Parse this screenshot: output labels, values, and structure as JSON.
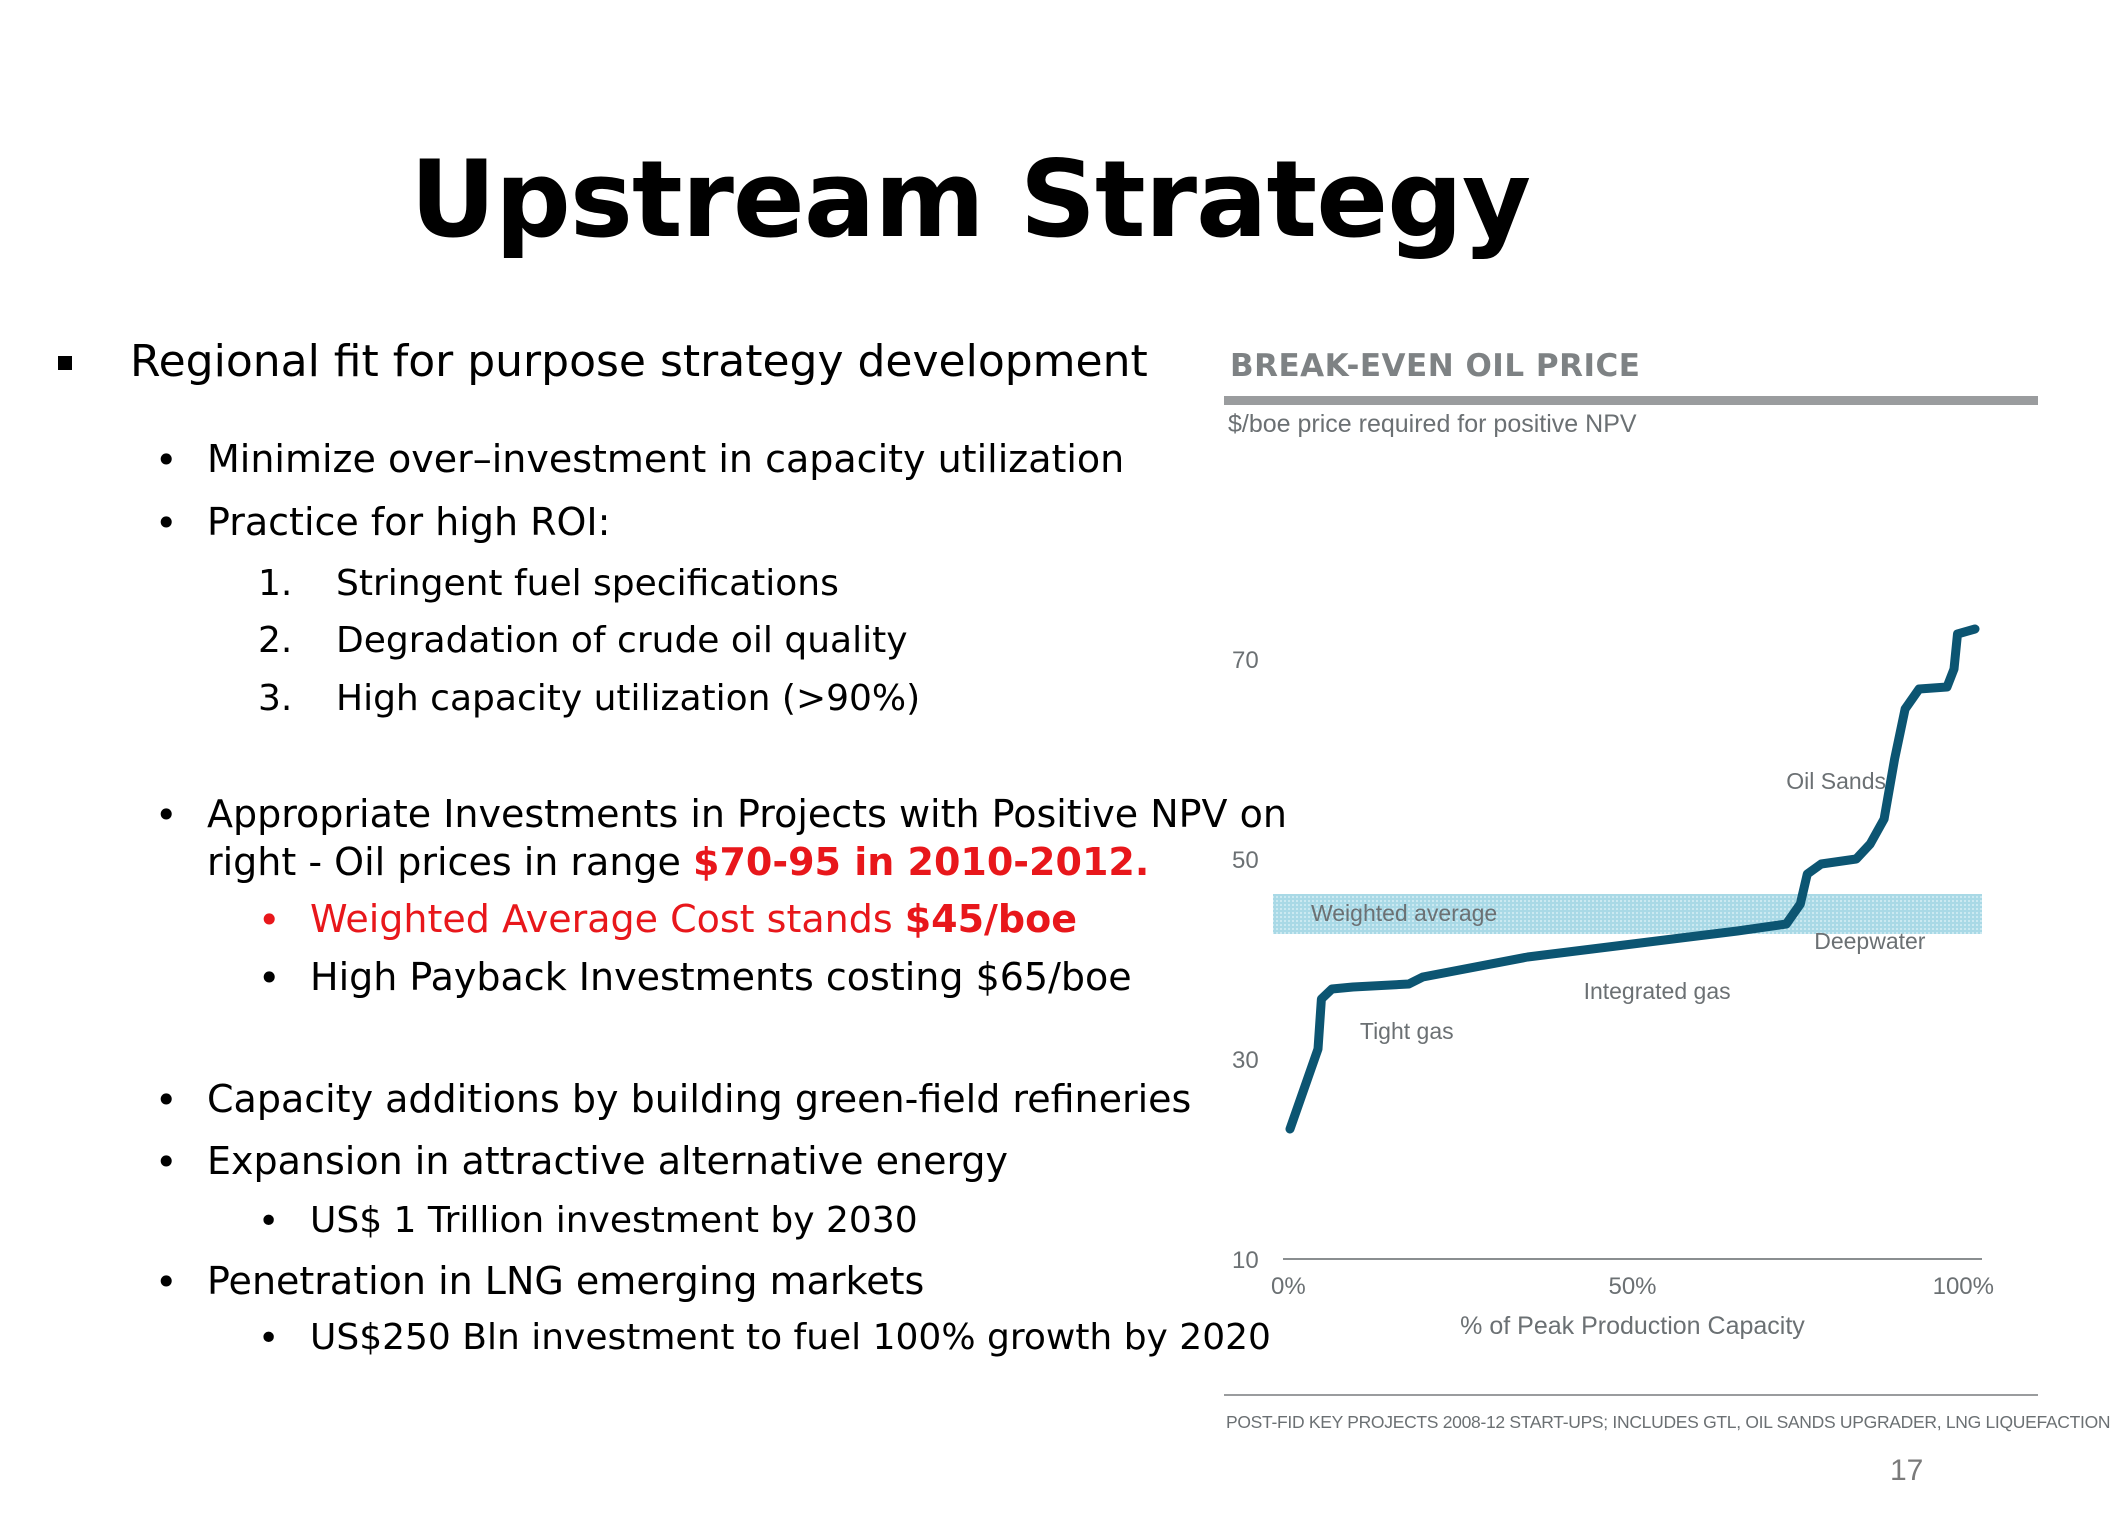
{
  "slide": {
    "title": "Upstream Strategy",
    "page_number": "17",
    "bullets": {
      "b1": "Regional fit for purpose strategy development",
      "b1a": "Minimize over–investment in capacity utilization",
      "b1b": "Practice for high ROI:",
      "n1_num": "1.",
      "n1": "Stringent fuel specifications",
      "n2_num": "2.",
      "n2": "Degradation of crude oil quality",
      "n3_num": "3.",
      "n3": "High capacity utilization (>90%)",
      "b2_line1": "Appropriate Investments in Projects with Positive NPV on",
      "b2_line2_pre": "right - Oil prices in range ",
      "b2_line2_red": "$70-95 in 2010-2012.",
      "b2a_pre": "Weighted Average Cost stands ",
      "b2a_bold": "$45/boe",
      "b2b": "High Payback Investments costing $65/boe",
      "b3": "Capacity additions by building green-field refineries",
      "b4": "Expansion in attractive alternative energy",
      "b4a": "US$ 1 Trillion investment by 2030",
      "b5": "Penetration in LNG emerging markets",
      "b5a": "US$250 Bln investment to fuel 100% growth by 2020"
    },
    "colors": {
      "text": "#000000",
      "highlight_red": "#e8171b"
    }
  },
  "chart_data": {
    "type": "line",
    "title": "BREAK-EVEN OIL PRICE",
    "subtitle": "$/boe price required for positive NPV",
    "xlabel": "% of Peak Production Capacity",
    "ylabel": "",
    "x_ticks": [
      "0%",
      "50%",
      "100%"
    ],
    "y_ticks": [
      "10",
      "30",
      "50",
      "70"
    ],
    "xlim": [
      0,
      100
    ],
    "ylim": [
      10,
      80
    ],
    "grid": false,
    "footnote": "POST-FID KEY PROJECTS 2008-12 START-UPS; INCLUDES GTL, OIL SANDS UPGRADER, LNG LIQUEFACTION",
    "weighted_average_band": {
      "label": "Weighted average",
      "low": 42.5,
      "high": 46.5
    },
    "annotations": [
      {
        "text": "Tight gas",
        "x": 11,
        "y": 32
      },
      {
        "text": "Integrated gas",
        "x": 43,
        "y": 36
      },
      {
        "text": "Deepwater",
        "x": 76,
        "y": 41
      },
      {
        "text": "Oil Sands",
        "x": 72,
        "y": 57
      }
    ],
    "series": [
      {
        "values": [
          {
            "x": 1,
            "y": 23
          },
          {
            "x": 3,
            "y": 27
          },
          {
            "x": 5,
            "y": 31
          },
          {
            "x": 5.5,
            "y": 36
          },
          {
            "x": 7,
            "y": 37
          },
          {
            "x": 10,
            "y": 37.2
          },
          {
            "x": 18,
            "y": 37.5
          },
          {
            "x": 20,
            "y": 38.2
          },
          {
            "x": 35,
            "y": 40.2
          },
          {
            "x": 50,
            "y": 41.5
          },
          {
            "x": 65,
            "y": 42.8
          },
          {
            "x": 72,
            "y": 43.5
          },
          {
            "x": 74,
            "y": 45.5
          },
          {
            "x": 75,
            "y": 48.5
          },
          {
            "x": 77,
            "y": 49.5
          },
          {
            "x": 82,
            "y": 50
          },
          {
            "x": 84,
            "y": 51.5
          },
          {
            "x": 86,
            "y": 54
          },
          {
            "x": 87.5,
            "y": 60
          },
          {
            "x": 89,
            "y": 65
          },
          {
            "x": 91,
            "y": 67
          },
          {
            "x": 95,
            "y": 67.2
          },
          {
            "x": 96,
            "y": 69
          },
          {
            "x": 96.5,
            "y": 72.5
          },
          {
            "x": 99,
            "y": 73
          }
        ]
      }
    ],
    "colors": {
      "line": "#0c5572",
      "band": "#a9d9e6",
      "axis": "#8a8e90",
      "header_bar": "#9a9c9e",
      "text": "#6b7073"
    }
  }
}
